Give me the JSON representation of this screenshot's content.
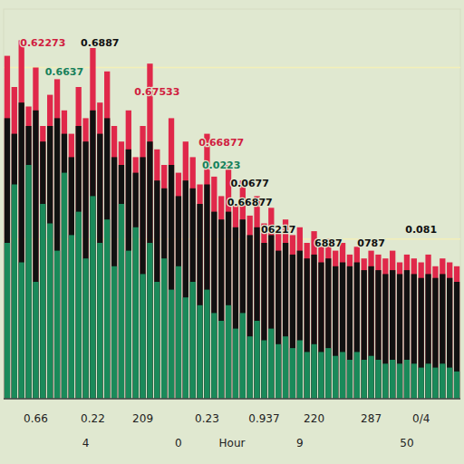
{
  "chart_data": {
    "type": "bar",
    "x_label": "Hour",
    "categories": [
      null,
      null,
      null,
      null,
      "0.66",
      null,
      null,
      null,
      null,
      null,
      null,
      null,
      "0.22",
      null,
      null,
      null,
      null,
      null,
      null,
      "209",
      null,
      null,
      null,
      null,
      null,
      null,
      null,
      null,
      "0.23",
      null,
      null,
      null,
      null,
      null,
      null,
      null,
      "0.937",
      null,
      null,
      null,
      null,
      null,
      null,
      "220",
      null,
      null,
      null,
      null,
      null,
      null,
      null,
      "287",
      null,
      null,
      null,
      null,
      null,
      null,
      "0/4",
      null,
      null,
      null,
      null,
      null
    ],
    "sublabels": [
      null,
      null,
      null,
      null,
      null,
      null,
      null,
      null,
      null,
      null,
      null,
      "4",
      null,
      null,
      null,
      null,
      null,
      null,
      null,
      null,
      null,
      null,
      null,
      null,
      "0",
      null,
      null,
      null,
      null,
      null,
      null,
      null,
      null,
      null,
      null,
      null,
      null,
      null,
      null,
      null,
      null,
      "9",
      null,
      null,
      null,
      null,
      null,
      null,
      null,
      null,
      null,
      null,
      null,
      null,
      null,
      null,
      "50",
      null,
      null,
      null,
      null,
      null,
      null,
      null
    ],
    "series": [
      {
        "color": "#e0284a",
        "values": [
          0.88,
          0.8,
          0.92,
          0.75,
          0.85,
          0.7,
          0.78,
          0.82,
          0.74,
          0.68,
          0.8,
          0.72,
          0.9,
          0.76,
          0.84,
          0.7,
          0.66,
          0.74,
          0.62,
          0.7,
          0.86,
          0.64,
          0.6,
          0.72,
          0.58,
          0.66,
          0.62,
          0.55,
          0.68,
          0.57,
          0.52,
          0.6,
          0.5,
          0.56,
          0.47,
          0.52,
          0.45,
          0.49,
          0.43,
          0.46,
          0.42,
          0.44,
          0.4,
          0.43,
          0.39,
          0.41,
          0.38,
          0.4,
          0.37,
          0.39,
          0.36,
          0.38,
          0.37,
          0.36,
          0.38,
          0.35,
          0.37,
          0.36,
          0.35,
          0.37,
          0.34,
          0.36,
          0.35,
          0.34
        ]
      },
      {
        "color": "#111111",
        "values": [
          0.72,
          0.68,
          0.76,
          0.7,
          0.74,
          0.66,
          0.7,
          0.72,
          0.68,
          0.62,
          0.7,
          0.66,
          0.74,
          0.68,
          0.72,
          0.62,
          0.6,
          0.64,
          0.58,
          0.62,
          0.66,
          0.56,
          0.54,
          0.6,
          0.52,
          0.56,
          0.54,
          0.5,
          0.55,
          0.48,
          0.46,
          0.48,
          0.44,
          0.46,
          0.42,
          0.44,
          0.4,
          0.42,
          0.38,
          0.4,
          0.37,
          0.38,
          0.36,
          0.37,
          0.35,
          0.36,
          0.34,
          0.35,
          0.34,
          0.35,
          0.33,
          0.34,
          0.33,
          0.32,
          0.33,
          0.32,
          0.33,
          0.32,
          0.31,
          0.32,
          0.31,
          0.32,
          0.31,
          0.3
        ]
      },
      {
        "color": "#1a8a5a",
        "values": [
          0.4,
          0.55,
          0.35,
          0.6,
          0.3,
          0.5,
          0.45,
          0.38,
          0.58,
          0.42,
          0.48,
          0.36,
          0.52,
          0.4,
          0.46,
          0.34,
          0.5,
          0.38,
          0.44,
          0.32,
          0.4,
          0.3,
          0.36,
          0.28,
          0.34,
          0.26,
          0.3,
          0.24,
          0.28,
          0.22,
          0.2,
          0.24,
          0.18,
          0.22,
          0.16,
          0.2,
          0.15,
          0.18,
          0.14,
          0.16,
          0.13,
          0.15,
          0.12,
          0.14,
          0.12,
          0.13,
          0.11,
          0.12,
          0.1,
          0.12,
          0.1,
          0.11,
          0.1,
          0.09,
          0.1,
          0.09,
          0.1,
          0.09,
          0.08,
          0.09,
          0.08,
          0.09,
          0.08,
          0.07
        ]
      }
    ],
    "ylim": [
      0,
      1
    ],
    "yticks": [
      0.41,
      0.85
    ],
    "grid": true,
    "tick_labels": "x",
    "annotations": [
      {
        "text": "0.62273",
        "x": 5,
        "y": 0.905,
        "color": "#d01e40"
      },
      {
        "text": "0.6887",
        "x": 13,
        "y": 0.905,
        "color": "#111111"
      },
      {
        "text": "0.6637",
        "x": 8,
        "y": 0.83,
        "color": "#16805a"
      },
      {
        "text": "0.67533",
        "x": 21,
        "y": 0.78,
        "color": "#d01e40"
      },
      {
        "text": "0.66877",
        "x": 30,
        "y": 0.65,
        "color": "#d01e40"
      },
      {
        "text": "0.0223",
        "x": 30,
        "y": 0.59,
        "color": "#16805a"
      },
      {
        "text": "0.0677",
        "x": 34,
        "y": 0.545,
        "color": "#111111"
      },
      {
        "text": "0.66877",
        "x": 34,
        "y": 0.495,
        "color": "#111111"
      },
      {
        "text": "06217",
        "x": 38,
        "y": 0.425,
        "color": "#111111"
      },
      {
        "text": "6887",
        "x": 45,
        "y": 0.39,
        "color": "#111111"
      },
      {
        "text": "0787",
        "x": 51,
        "y": 0.39,
        "color": "#111111"
      },
      {
        "text": "0.081",
        "x": 58,
        "y": 0.425,
        "color": "#111111"
      }
    ]
  }
}
